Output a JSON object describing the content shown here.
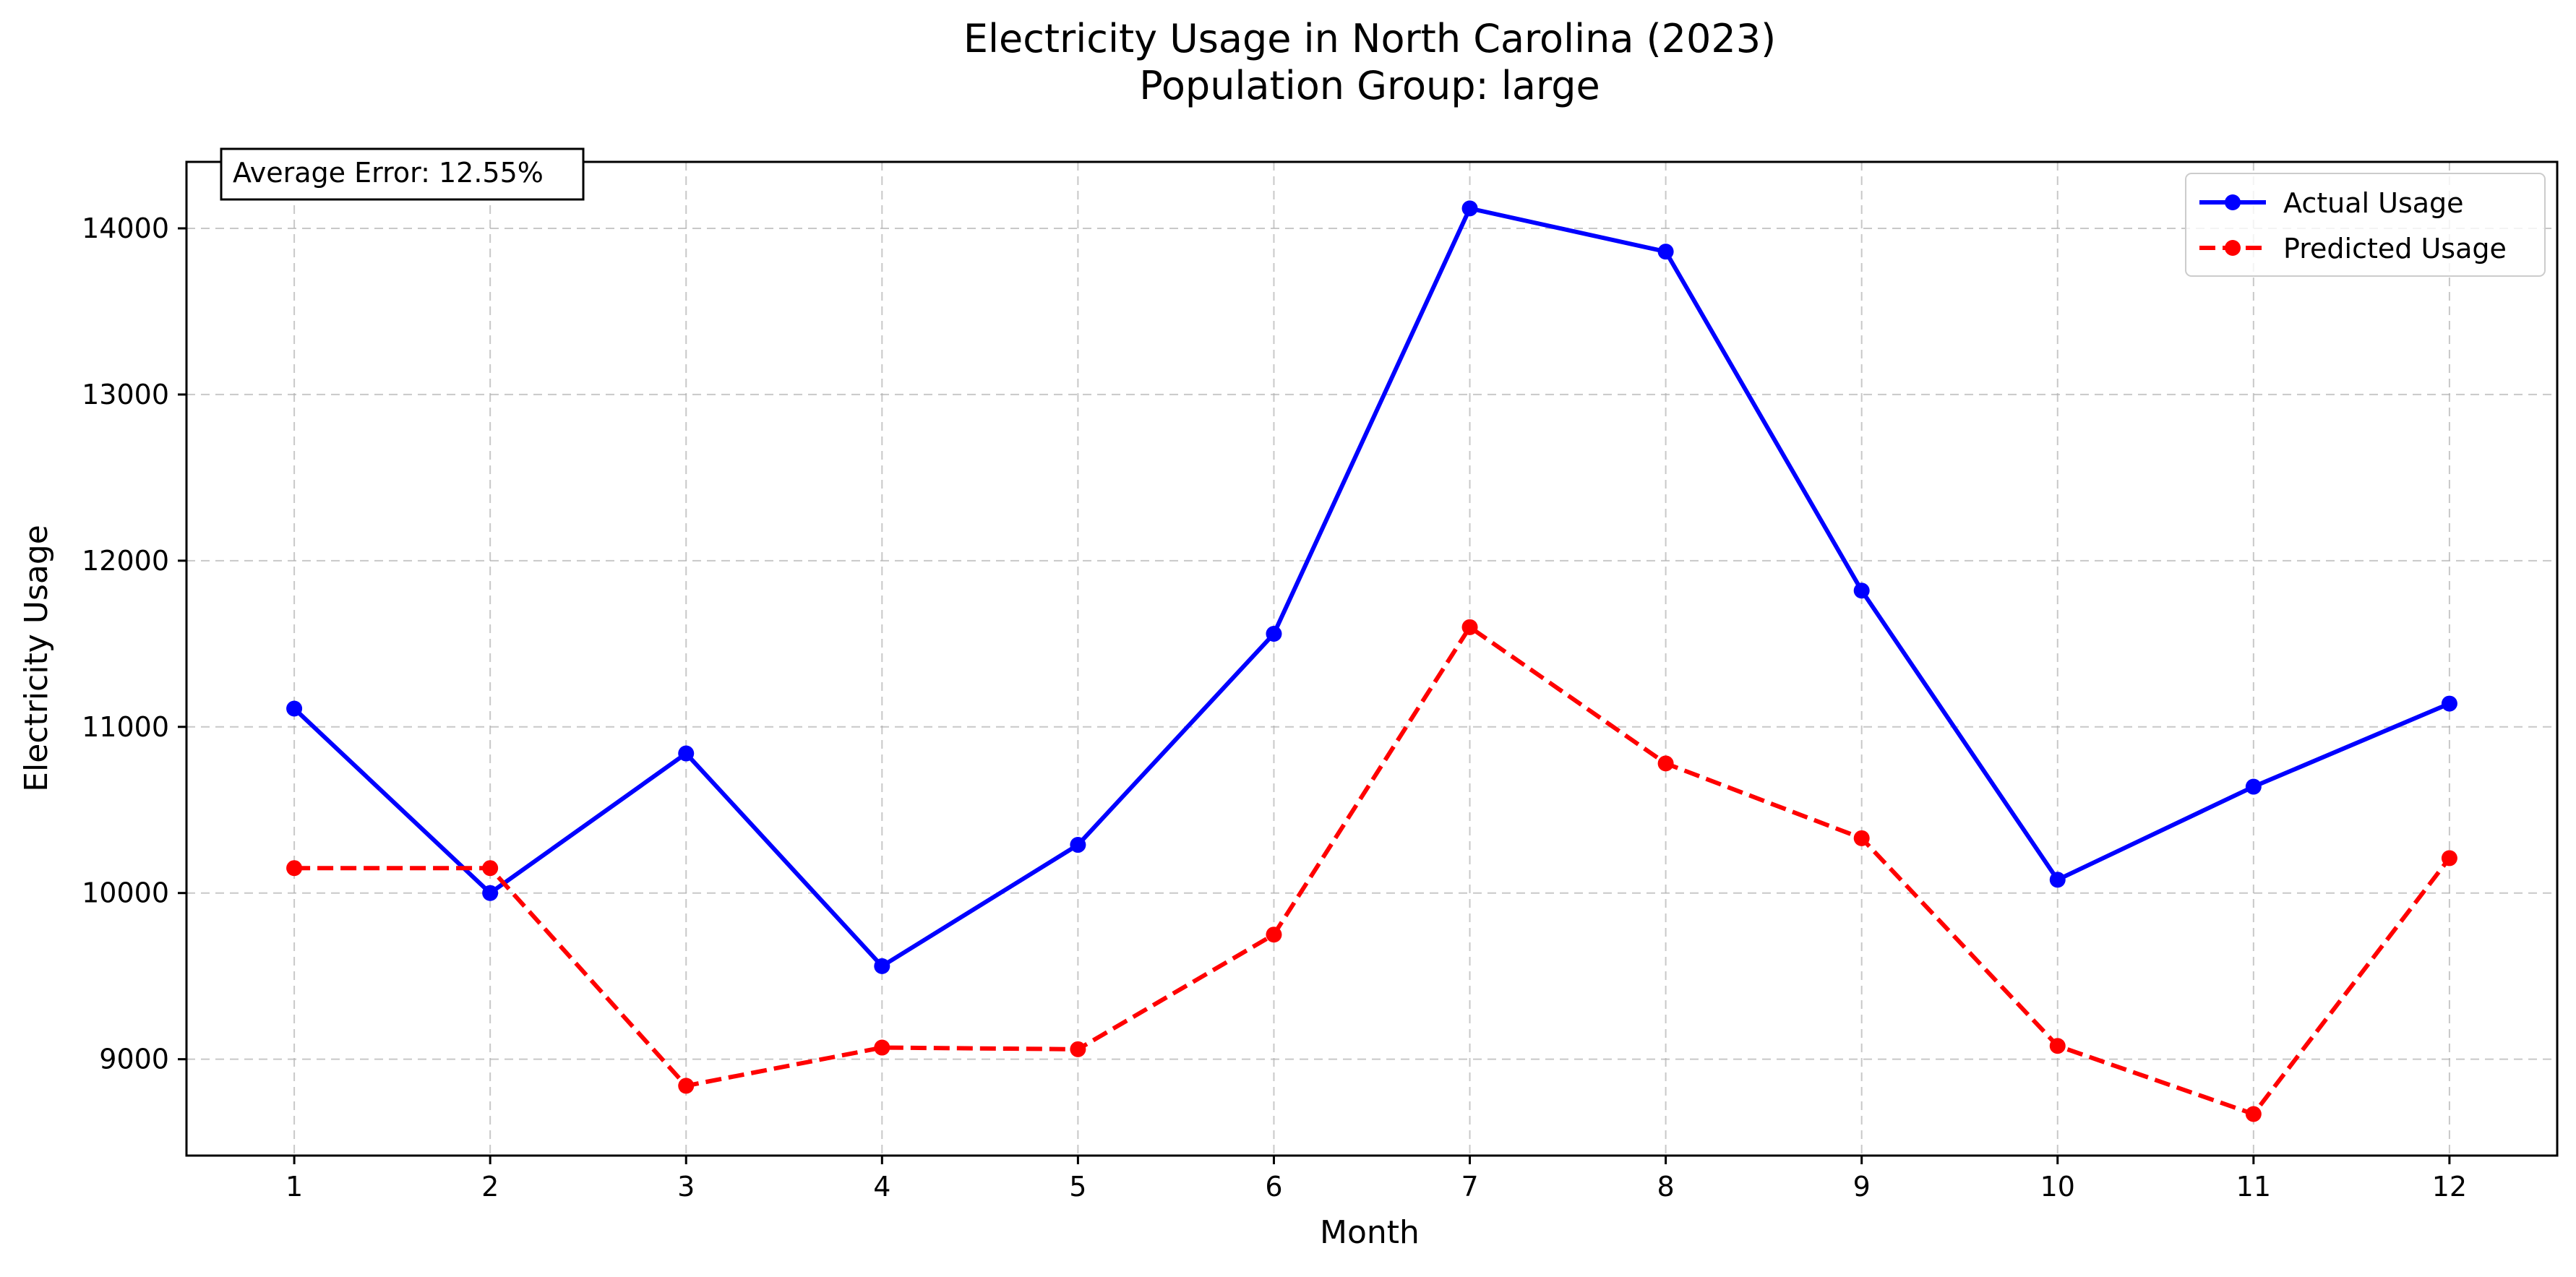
{
  "chart_data": {
    "type": "line",
    "title": "Electricity Usage in North Carolina (2023)",
    "subtitle": "Population Group: large",
    "xlabel": "Month",
    "ylabel": "Electricity Usage",
    "x": [
      1,
      2,
      3,
      4,
      5,
      6,
      7,
      8,
      9,
      10,
      11,
      12
    ],
    "x_tick_labels": [
      "1",
      "2",
      "3",
      "4",
      "5",
      "6",
      "7",
      "8",
      "9",
      "10",
      "11",
      "12"
    ],
    "xlim": [
      0.45,
      12.55
    ],
    "ylim": [
      8420,
      14400
    ],
    "y_ticks": [
      9000,
      10000,
      11000,
      12000,
      13000,
      14000
    ],
    "y_tick_labels": [
      "9000",
      "10000",
      "11000",
      "12000",
      "13000",
      "14000"
    ],
    "grid": true,
    "legend_position": "top-right",
    "series": [
      {
        "name": "Actual Usage",
        "color": "#0000ff",
        "line_style": "solid",
        "marker": "circle",
        "values": [
          11110,
          10000,
          10840,
          9560,
          10290,
          11560,
          14120,
          13860,
          11820,
          10080,
          10640,
          11140
        ]
      },
      {
        "name": "Predicted Usage",
        "color": "#ff0000",
        "line_style": "dashed",
        "marker": "circle",
        "values": [
          10150,
          10150,
          8840,
          9070,
          9060,
          9750,
          11600,
          10780,
          10330,
          9080,
          8670,
          10210
        ]
      }
    ],
    "annotation": {
      "text": "Average Error: 12.55%",
      "position": "top-left"
    }
  }
}
